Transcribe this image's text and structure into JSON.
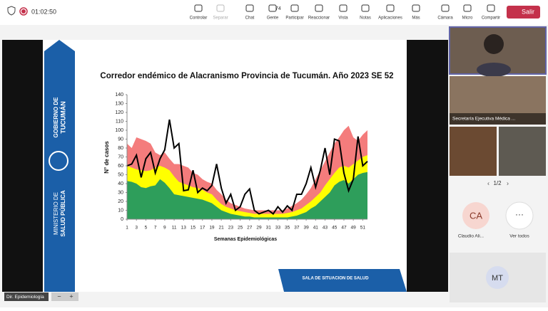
{
  "meeting": {
    "timer": "01:02:50",
    "toolbar": [
      "Controlar",
      "Separar",
      "Chat",
      "Gente",
      "Participar",
      "Reaccionar",
      "Vista",
      "Notas",
      "Aplicaciones",
      "Más",
      "Cámara",
      "Micro",
      "Compartir"
    ],
    "people_count": 74,
    "leave": "Salir"
  },
  "slide": {
    "gov": [
      "GOBIERNO DE",
      "TUCUMÁN"
    ],
    "ministry": [
      "MINISTERIO DE",
      "SALUD PÚBLICA"
    ],
    "banner": "SALA DE SITUACION DE SALUD"
  },
  "participants": {
    "tile_label": "Secretaría Ejecutiva Médica ...",
    "page": "1/2",
    "avatar1": "CA",
    "avatar1_name": "Claudio Ali...",
    "see_all": "Ver todos",
    "avatar2": "MT"
  },
  "presenter": "Dir. Epidemiología",
  "chart_data": {
    "type": "area",
    "title": "Corredor endémico de Alacranismo Provincia de Tucumán. Año 2023 SE 52",
    "x_label": "Semanas Epidemiológicas",
    "y_label": "N° de casos",
    "x": [
      1,
      2,
      3,
      4,
      5,
      6,
      7,
      8,
      9,
      10,
      11,
      12,
      13,
      14,
      15,
      16,
      17,
      18,
      19,
      20,
      21,
      22,
      23,
      24,
      25,
      26,
      27,
      28,
      29,
      30,
      31,
      32,
      33,
      34,
      35,
      36,
      37,
      38,
      39,
      40,
      41,
      42,
      43,
      44,
      45,
      46,
      47,
      48,
      49,
      50,
      51,
      52
    ],
    "xlim": [
      1,
      52
    ],
    "xticks": [
      1,
      3,
      5,
      7,
      9,
      11,
      13,
      15,
      17,
      19,
      21,
      23,
      25,
      27,
      29,
      31,
      33,
      35,
      37,
      39,
      41,
      43,
      45,
      47,
      49,
      51
    ],
    "ylim": [
      0,
      140
    ],
    "yticks": [
      0,
      10,
      20,
      30,
      40,
      50,
      60,
      70,
      80,
      90,
      100,
      110,
      120,
      130,
      140
    ],
    "series": [
      {
        "color": "#f47c7c",
        "values": [
          85,
          80,
          92,
          90,
          88,
          85,
          75,
          72,
          75,
          68,
          62,
          62,
          60,
          58,
          52,
          50,
          45,
          42,
          40,
          33,
          28,
          22,
          18,
          16,
          14,
          12,
          11,
          10,
          10,
          10,
          10,
          10,
          10,
          10,
          12,
          15,
          18,
          22,
          28,
          35,
          45,
          55,
          65,
          75,
          85,
          92,
          100,
          105,
          92,
          88,
          95,
          100
        ]
      },
      {
        "color": "#ffff00",
        "values": [
          60,
          58,
          56,
          55,
          54,
          55,
          58,
          60,
          58,
          55,
          48,
          42,
          40,
          38,
          36,
          35,
          33,
          30,
          28,
          22,
          17,
          14,
          12,
          10,
          9,
          8,
          7,
          6,
          6,
          6,
          6,
          6,
          6,
          6,
          7,
          8,
          10,
          12,
          16,
          20,
          25,
          30,
          38,
          45,
          52,
          58,
          60,
          58,
          62,
          66,
          70,
          72
        ]
      },
      {
        "color": "#2e9e5b",
        "values": [
          43,
          42,
          40,
          36,
          35,
          37,
          38,
          45,
          41,
          35,
          28,
          27,
          26,
          25,
          24,
          23,
          22,
          20,
          18,
          14,
          10,
          8,
          6,
          5,
          4,
          3,
          3,
          2,
          2,
          2,
          2,
          2,
          2,
          2,
          2,
          3,
          4,
          6,
          8,
          12,
          15,
          20,
          25,
          30,
          38,
          42,
          44,
          40,
          45,
          50,
          52,
          53
        ]
      },
      {
        "color": "#000000",
        "line": true,
        "values": [
          60,
          62,
          72,
          47,
          68,
          75,
          52,
          68,
          78,
          112,
          80,
          85,
          32,
          33,
          55,
          30,
          35,
          32,
          38,
          62,
          35,
          18,
          28,
          10,
          14,
          28,
          34,
          10,
          6,
          8,
          10,
          6,
          14,
          8,
          15,
          10,
          28,
          28,
          40,
          58,
          36,
          55,
          80,
          50,
          90,
          88,
          52,
          32,
          45,
          93,
          60,
          65
        ]
      }
    ]
  }
}
